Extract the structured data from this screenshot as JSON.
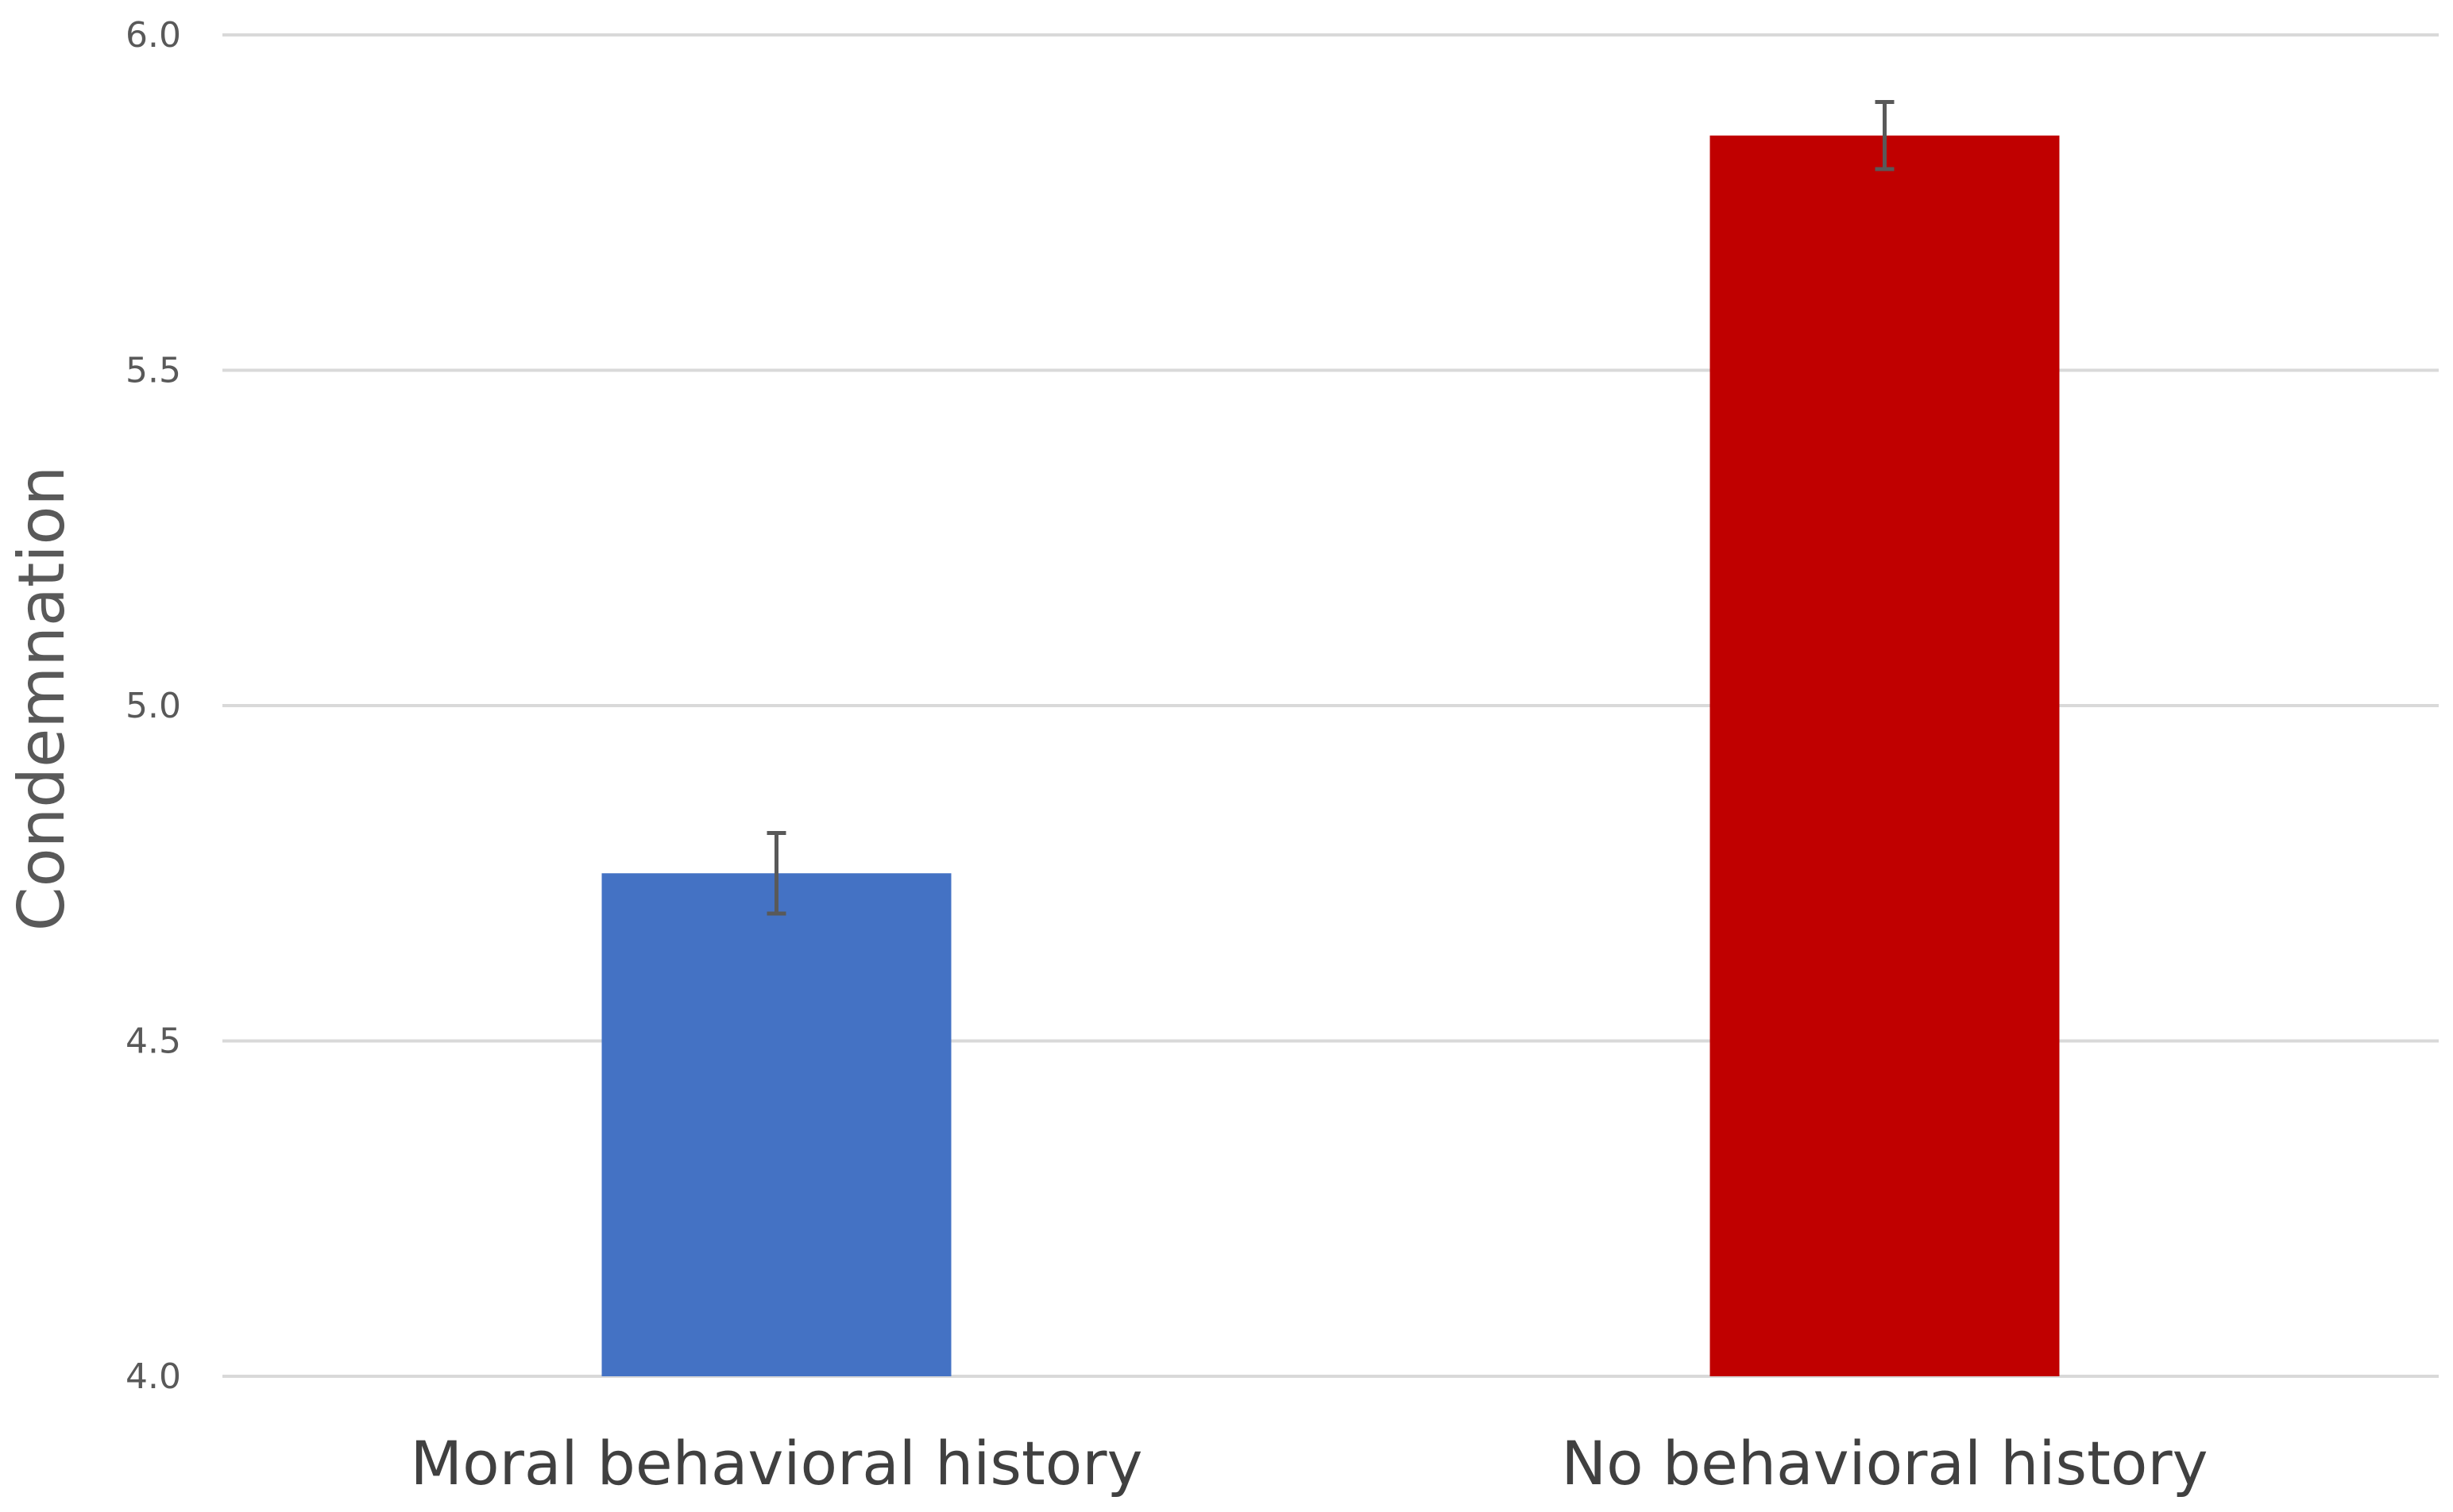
{
  "chart_data": {
    "type": "bar",
    "categories": [
      "Moral behavioral history",
      "No behavioral history"
    ],
    "values": [
      4.75,
      5.85
    ],
    "errors": [
      0.06,
      0.05
    ],
    "colors": [
      "#4472c4",
      "#c00000"
    ],
    "title": "",
    "xlabel": "",
    "ylabel": "Condemnation",
    "ylim": [
      4.0,
      6.0
    ],
    "yticks": [
      4.0,
      4.5,
      5.0,
      5.5,
      6.0
    ],
    "ytick_labels": [
      "4.0",
      "4.5",
      "5.0",
      "5.5",
      "6.0"
    ],
    "grid": true,
    "legend": "none"
  }
}
